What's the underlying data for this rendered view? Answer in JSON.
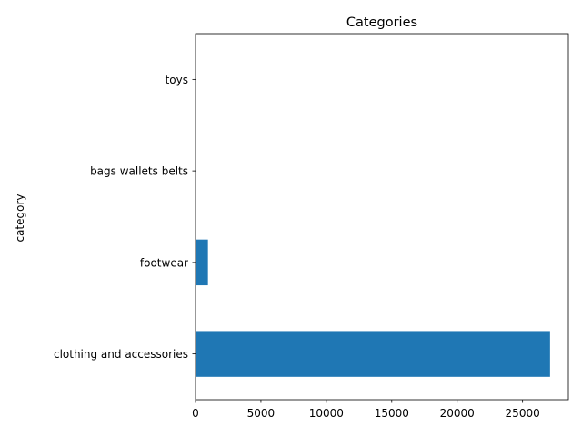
{
  "chart_data": {
    "type": "bar",
    "orientation": "horizontal",
    "title": "Categories",
    "xlabel": "",
    "ylabel": "category",
    "categories": [
      "clothing and accessories",
      "footwear",
      "bags wallets belts",
      "toys"
    ],
    "values": [
      27100,
      950,
      8,
      2
    ],
    "xlim": [
      0,
      28500
    ],
    "xticks": [
      0,
      5000,
      10000,
      15000,
      20000,
      25000
    ],
    "grid": false,
    "legend": "none",
    "bar_color": "#1f77b4"
  }
}
